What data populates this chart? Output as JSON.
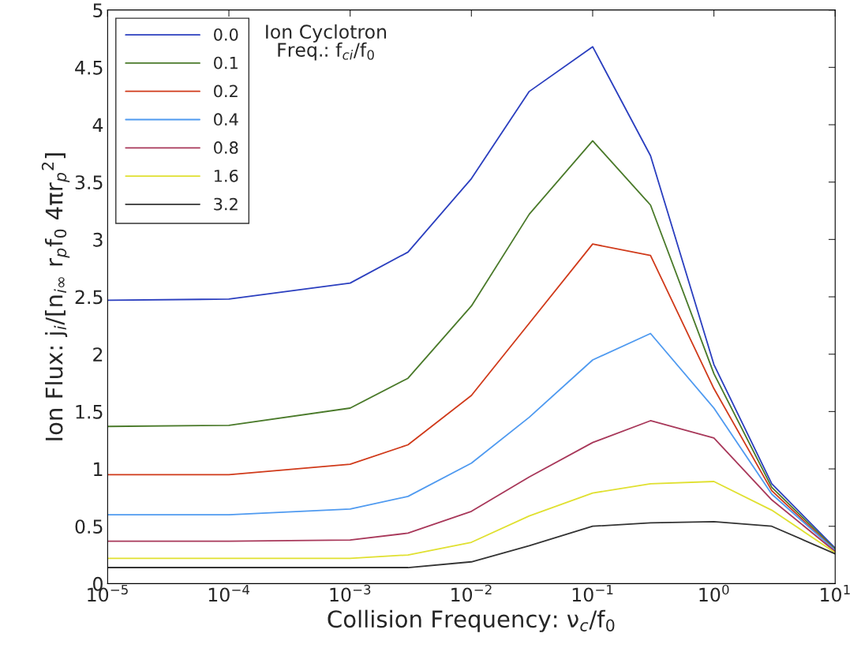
{
  "chart_data": {
    "type": "line",
    "xlabel": "Collision Frequency: ν$_{c}$/f$_{0}$",
    "ylabel": "Ion Flux: j$_{i}$/[n$_{i∞}$ r$_{p}$f$_{0}$ 4πr$_{p}$$^{2}$]",
    "legend_title": "Ion Cyclotron\nFreq.: f$_{ci}$/f$_{0}$",
    "log": "x",
    "grid": false,
    "legend": "top left",
    "marker": "none",
    "line_style": "solid",
    "x": [
      1e-05,
      0.0001,
      0.001,
      0.003,
      0.01,
      0.03,
      0.1,
      0.3,
      1,
      3,
      10
    ],
    "xlim": [
      1e-05,
      10
    ],
    "ylim": [
      0,
      5
    ],
    "xticks": [
      {
        "value": 1e-05,
        "label": "10$^{−5}$"
      },
      {
        "value": 0.0001,
        "label": "10$^{−4}$"
      },
      {
        "value": 0.001,
        "label": "10$^{−3}$"
      },
      {
        "value": 0.01,
        "label": "10$^{−2}$"
      },
      {
        "value": 0.1,
        "label": "10$^{−1}$"
      },
      {
        "value": 1,
        "label": "10$^{0}$"
      },
      {
        "value": 10,
        "label": "10$^{1}$"
      }
    ],
    "yticks": [
      0,
      0.5,
      1,
      1.5,
      2,
      2.5,
      3,
      3.5,
      4,
      4.5,
      5
    ],
    "series": [
      {
        "name": "0.0",
        "color": "#2b3fbf",
        "values": [
          2.47,
          2.48,
          2.62,
          2.89,
          3.53,
          4.29,
          4.68,
          3.73,
          1.91,
          0.87,
          0.31
        ]
      },
      {
        "name": "0.1",
        "color": "#4a7a2a",
        "values": [
          1.37,
          1.38,
          1.53,
          1.79,
          2.42,
          3.22,
          3.86,
          3.3,
          1.83,
          0.84,
          0.3
        ]
      },
      {
        "name": "0.2",
        "color": "#d03a1a",
        "values": [
          0.95,
          0.95,
          1.04,
          1.21,
          1.64,
          2.27,
          2.96,
          2.86,
          1.7,
          0.81,
          0.29
        ]
      },
      {
        "name": "0.4",
        "color": "#4f9af0",
        "values": [
          0.6,
          0.6,
          0.65,
          0.76,
          1.05,
          1.45,
          1.95,
          2.18,
          1.53,
          0.78,
          0.29
        ]
      },
      {
        "name": "0.8",
        "color": "#a8385a",
        "values": [
          0.37,
          0.37,
          0.38,
          0.44,
          0.63,
          0.93,
          1.23,
          1.42,
          1.27,
          0.73,
          0.28
        ]
      },
      {
        "name": "1.6",
        "color": "#e0e030",
        "values": [
          0.22,
          0.22,
          0.22,
          0.25,
          0.36,
          0.59,
          0.79,
          0.87,
          0.89,
          0.64,
          0.27
        ]
      },
      {
        "name": "3.2",
        "color": "#333333",
        "values": [
          0.14,
          0.14,
          0.14,
          0.14,
          0.19,
          0.33,
          0.5,
          0.53,
          0.54,
          0.5,
          0.26
        ]
      }
    ]
  }
}
